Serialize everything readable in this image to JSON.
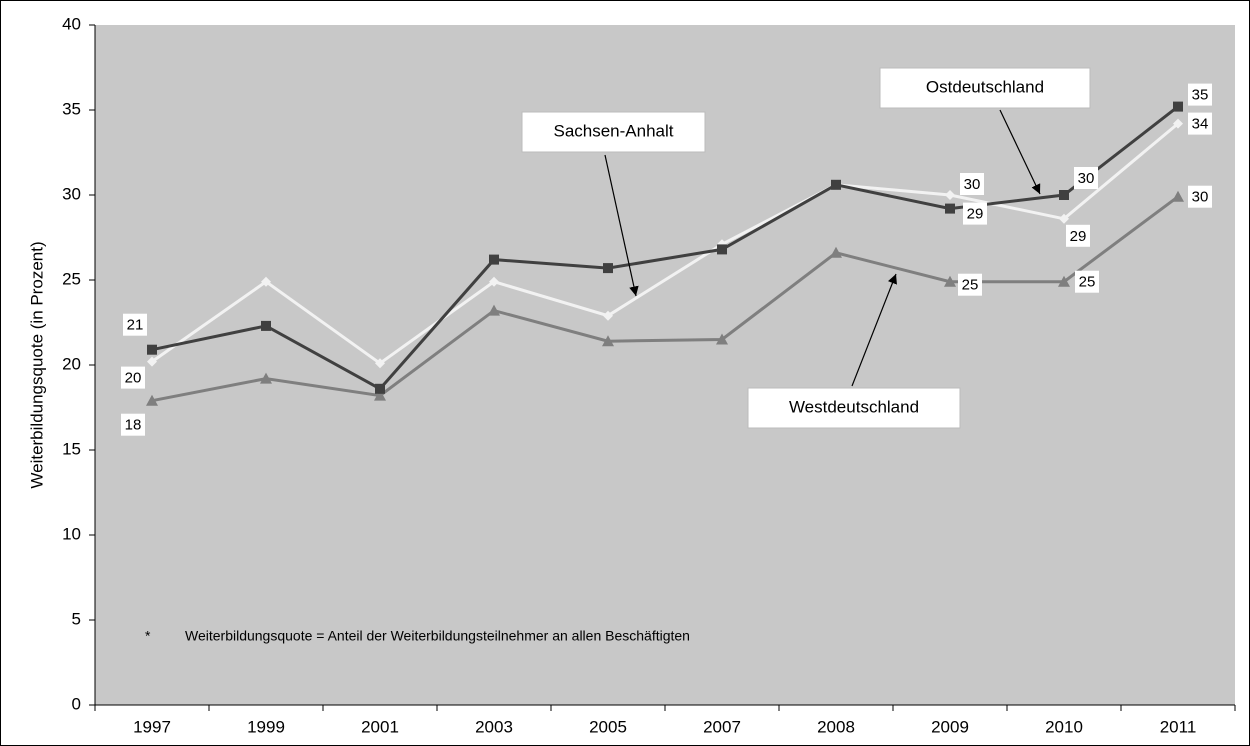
{
  "chart_data": {
    "type": "line",
    "y_label": "Weiterbildungsquote (in Prozent)",
    "categories": [
      "1997",
      "1999",
      "2001",
      "2003",
      "2005",
      "2007",
      "2008",
      "2009",
      "2010",
      "2011"
    ],
    "series": [
      {
        "name": "Ostdeutschland",
        "color": "#404040",
        "marker": "square",
        "values": [
          20.9,
          22.3,
          18.6,
          26.2,
          25.7,
          26.8,
          30.6,
          29.2,
          30.0,
          35.2
        ],
        "value_labels": [
          "21",
          null,
          null,
          null,
          null,
          null,
          null,
          "29",
          "30",
          "35"
        ]
      },
      {
        "name": "Sachsen-Anhalt",
        "color": "#f2f2f2",
        "marker": "diamond",
        "values": [
          20.2,
          24.9,
          20.1,
          24.9,
          22.9,
          27.1,
          30.6,
          30.0,
          28.6,
          34.2
        ],
        "value_labels": [
          "20",
          null,
          null,
          null,
          null,
          null,
          null,
          "30",
          "29",
          "34"
        ]
      },
      {
        "name": "Westdeutschland",
        "color": "#7f7f7f",
        "marker": "triangle",
        "values": [
          17.9,
          19.2,
          18.2,
          23.2,
          21.4,
          21.5,
          26.6,
          24.9,
          24.9,
          29.9
        ],
        "value_labels": [
          "18",
          null,
          null,
          null,
          null,
          null,
          null,
          "25",
          "25",
          "30"
        ]
      }
    ],
    "ylim": [
      0,
      40
    ],
    "yticks": [
      0,
      5,
      10,
      15,
      20,
      25,
      30,
      35,
      40
    ],
    "grid": false,
    "plot_background": "#c8c8c8",
    "note": {
      "marker": "*",
      "text": "Weiterbildungsquote = Anteil der Weiterbildungsteilnehmer an allen Beschäftigten"
    }
  }
}
